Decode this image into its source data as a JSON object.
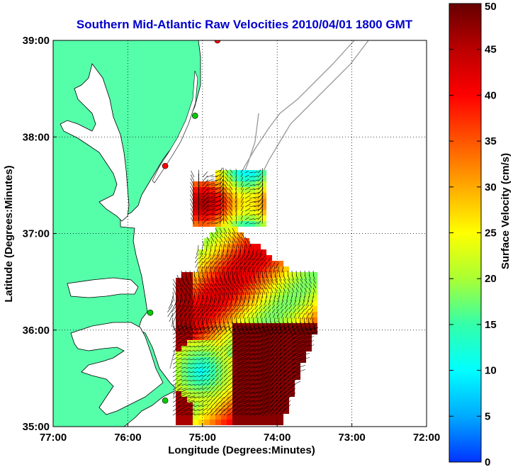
{
  "title": "Southern Mid-Atlantic Raw Velocities 2010/04/01 1800 GMT",
  "x_axis": {
    "label": "Longitude (Degrees:Minutes)",
    "ticks": [
      {
        "lon": -77,
        "label": "77:00"
      },
      {
        "lon": -76,
        "label": "76:00"
      },
      {
        "lon": -75,
        "label": "75:00"
      },
      {
        "lon": -74,
        "label": "74:00"
      },
      {
        "lon": -73,
        "label": "73:00"
      },
      {
        "lon": -72,
        "label": "72:00"
      }
    ],
    "range": [
      -77,
      -72
    ]
  },
  "y_axis": {
    "label": "Latitude (Degrees:Minutes)",
    "ticks": [
      {
        "lat": 35,
        "label": "35:00"
      },
      {
        "lat": 36,
        "label": "36:00"
      },
      {
        "lat": 37,
        "label": "37:00"
      },
      {
        "lat": 38,
        "label": "38:00"
      },
      {
        "lat": 39,
        "label": "39:00"
      }
    ],
    "range": [
      35,
      39
    ]
  },
  "colorbar": {
    "label": "Surface Velocity (cm/s)",
    "min": 0,
    "max": 50,
    "ticks": [
      {
        "value": 0,
        "label": "0"
      },
      {
        "value": 5,
        "label": "5"
      },
      {
        "value": 10,
        "label": "10"
      },
      {
        "value": 15,
        "label": "15"
      },
      {
        "value": 20,
        "label": "20"
      },
      {
        "value": 25,
        "label": "25"
      },
      {
        "value": 30,
        "label": "30"
      },
      {
        "value": 35,
        "label": "35"
      },
      {
        "value": 40,
        "label": "40"
      },
      {
        "value": 45,
        "label": "45"
      },
      {
        "value": 50,
        "label": "50"
      }
    ],
    "colors": [
      "#0033ff",
      "#00aaff",
      "#00ffff",
      "#33ffaa",
      "#aaff33",
      "#ffff00",
      "#ffaa00",
      "#ff5500",
      "#ff0000",
      "#bb0000",
      "#660000"
    ]
  },
  "colors": {
    "land": "#55ffaa",
    "water": "#ffffff",
    "bathymetry": "#999999",
    "grid": "#000000",
    "title": "#0000cc"
  },
  "stations": [
    {
      "lon": -74.8,
      "lat": 39.0,
      "color": "#ff0000"
    },
    {
      "lon": -75.1,
      "lat": 38.22,
      "color": "#00cc00"
    },
    {
      "lon": -75.5,
      "lat": 37.7,
      "color": "#ff0000"
    },
    {
      "lon": -75.7,
      "lat": 36.18,
      "color": "#00cc00"
    },
    {
      "lon": -75.5,
      "lat": 35.27,
      "color": "#00cc00"
    }
  ]
}
